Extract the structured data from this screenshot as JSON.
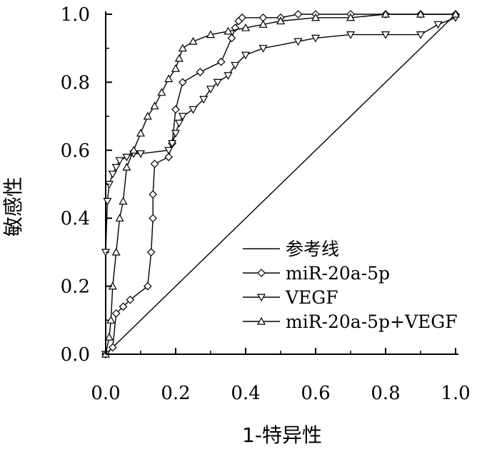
{
  "chart_data": {
    "type": "line",
    "title": "",
    "xlabel": "1-特异性",
    "ylabel": "敏感性",
    "xlim": [
      0,
      1
    ],
    "ylim": [
      0,
      1
    ],
    "xticks": [
      "0.0",
      "0.2",
      "0.4",
      "0.6",
      "0.8",
      "1.0"
    ],
    "yticks": [
      "0.0",
      "0.2",
      "0.4",
      "0.6",
      "0.8",
      "1.0"
    ],
    "legend_position": "bottom-right",
    "series": [
      {
        "name": "参考线",
        "marker": "none",
        "x": [
          0,
          0.95,
          1.0
        ],
        "y": [
          0,
          0.95,
          1.0
        ]
      },
      {
        "name": "miR-20a-5p",
        "marker": "diamond",
        "x": [
          0.0,
          0.02,
          0.03,
          0.05,
          0.07,
          0.12,
          0.13,
          0.135,
          0.135,
          0.14,
          0.18,
          0.19,
          0.2,
          0.22,
          0.27,
          0.33,
          0.36,
          0.37,
          0.38,
          0.39,
          0.45,
          0.5,
          0.55,
          0.6,
          0.7,
          0.8,
          0.9,
          1.0
        ],
        "y": [
          0.0,
          0.02,
          0.12,
          0.14,
          0.16,
          0.2,
          0.3,
          0.4,
          0.47,
          0.56,
          0.58,
          0.62,
          0.72,
          0.8,
          0.83,
          0.86,
          0.93,
          0.96,
          0.98,
          0.99,
          0.99,
          0.99,
          1.0,
          1.0,
          1.0,
          1.0,
          1.0,
          1.0
        ]
      },
      {
        "name": "VEGF",
        "marker": "triangle-down",
        "x": [
          0.0,
          0.0,
          0.005,
          0.01,
          0.02,
          0.03,
          0.04,
          0.06,
          0.08,
          0.1,
          0.18,
          0.19,
          0.2,
          0.21,
          0.22,
          0.25,
          0.28,
          0.3,
          0.32,
          0.35,
          0.37,
          0.4,
          0.45,
          0.55,
          0.6,
          0.7,
          0.8,
          0.9,
          0.95,
          1.0
        ],
        "y": [
          0.0,
          0.3,
          0.45,
          0.5,
          0.53,
          0.55,
          0.57,
          0.58,
          0.59,
          0.59,
          0.6,
          0.62,
          0.65,
          0.68,
          0.7,
          0.72,
          0.75,
          0.78,
          0.8,
          0.82,
          0.85,
          0.88,
          0.9,
          0.92,
          0.93,
          0.94,
          0.94,
          0.94,
          0.97,
          0.99
        ]
      },
      {
        "name": "miR-20a-5p+VEGF",
        "marker": "triangle-up",
        "x": [
          0.0,
          0.01,
          0.015,
          0.02,
          0.03,
          0.04,
          0.05,
          0.06,
          0.08,
          0.1,
          0.12,
          0.14,
          0.16,
          0.18,
          0.2,
          0.21,
          0.22,
          0.25,
          0.3,
          0.35,
          0.4,
          0.45,
          0.5,
          0.6,
          0.7,
          0.8,
          0.9,
          1.0
        ],
        "y": [
          0.0,
          0.05,
          0.1,
          0.2,
          0.3,
          0.4,
          0.45,
          0.55,
          0.6,
          0.65,
          0.7,
          0.73,
          0.77,
          0.81,
          0.84,
          0.87,
          0.9,
          0.92,
          0.94,
          0.95,
          0.96,
          0.97,
          0.98,
          0.99,
          0.99,
          1.0,
          1.0,
          1.0
        ]
      }
    ]
  }
}
